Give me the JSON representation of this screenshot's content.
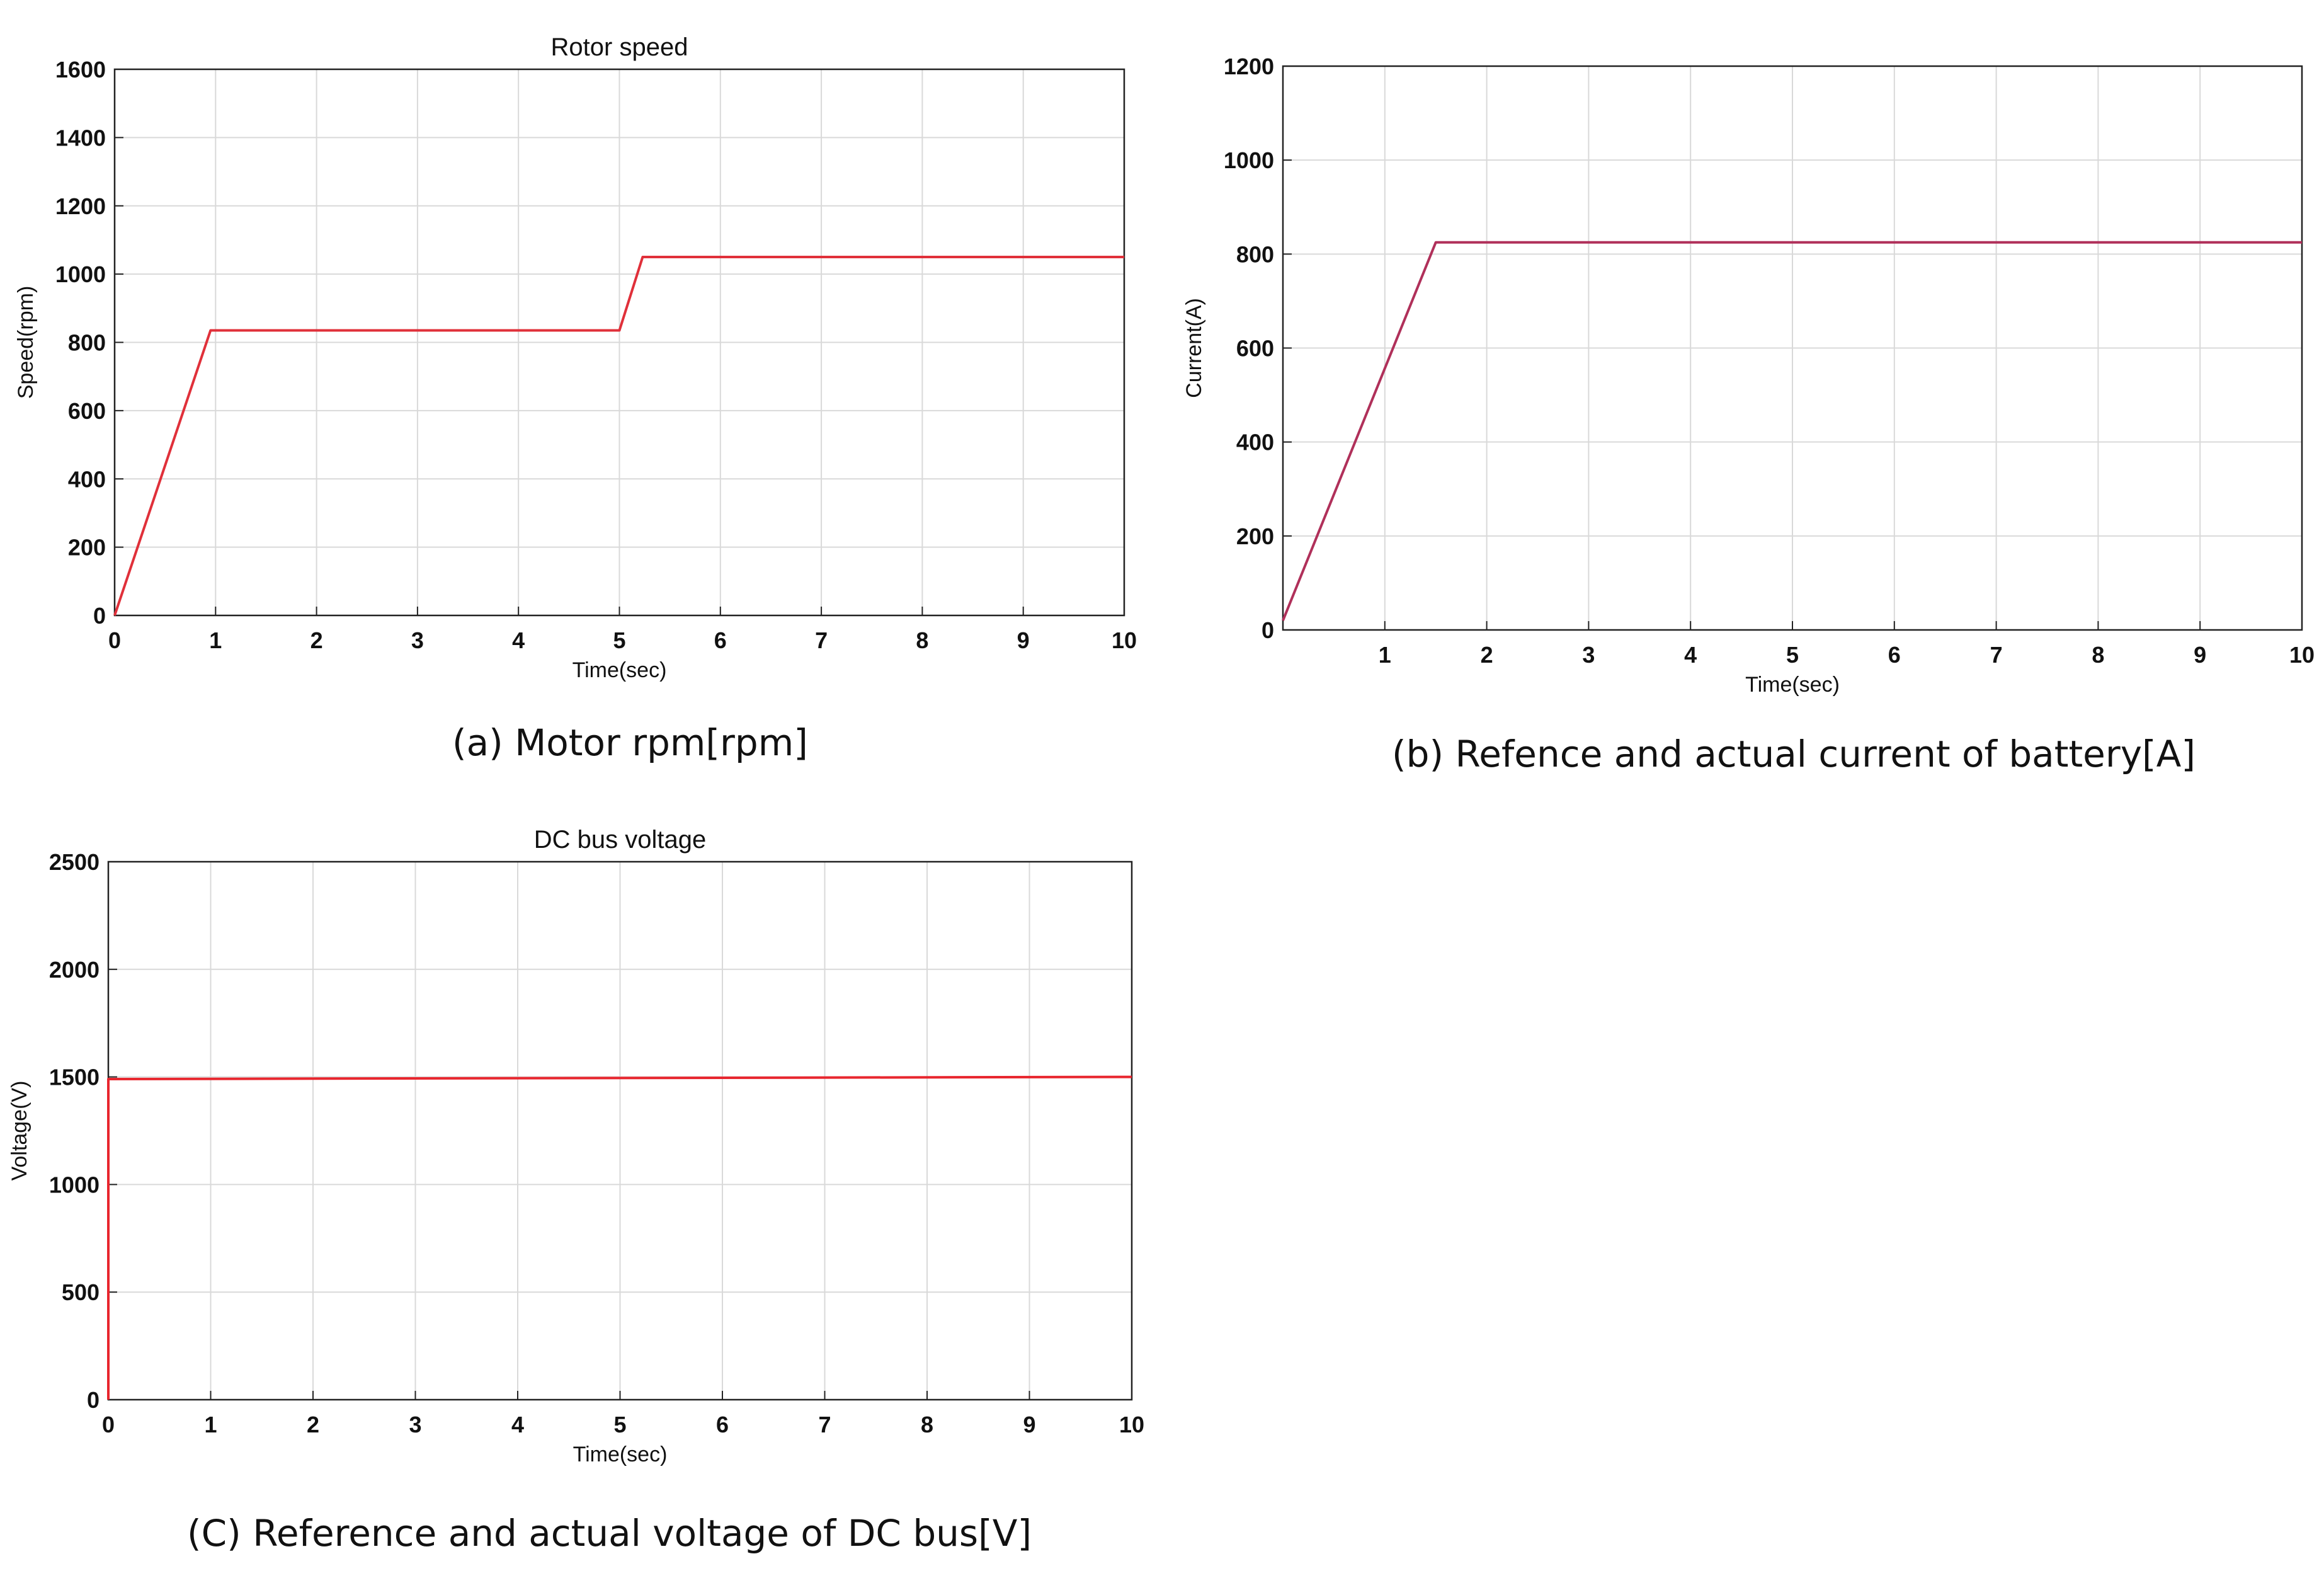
{
  "chart_data": [
    {
      "id": "a",
      "type": "line",
      "title": "Rotor speed",
      "xlabel": "Time(sec)",
      "ylabel": "Speed(rpm)",
      "xlim": [
        0,
        10
      ],
      "ylim": [
        0,
        1600
      ],
      "xticks": [
        0,
        1,
        2,
        3,
        4,
        5,
        6,
        7,
        8,
        9,
        10
      ],
      "xtick_labels": [
        "0",
        "1",
        "2",
        "3",
        "4",
        "5",
        "6",
        "7",
        "8",
        "9",
        "10"
      ],
      "yticks": [
        0,
        200,
        400,
        600,
        800,
        1000,
        1200,
        1400,
        1600
      ],
      "ytick_labels": [
        "0",
        "200",
        "400",
        "600",
        "800",
        "1000",
        "1200",
        "1400",
        "1600"
      ],
      "grid": true,
      "series": [
        {
          "color": "#e0303a",
          "x": [
            0,
            0.95,
            5.0,
            5.23,
            10
          ],
          "y": [
            0,
            835,
            835,
            1050,
            1050
          ]
        }
      ],
      "caption": "(a) Motor rpm[rpm]"
    },
    {
      "id": "b",
      "type": "line",
      "title": "",
      "xlabel": "Time(sec)",
      "ylabel": "Current(A)",
      "xlim": [
        0,
        10
      ],
      "ylim": [
        0,
        1200
      ],
      "xticks": [
        1,
        2,
        3,
        4,
        5,
        6,
        7,
        8,
        9,
        10
      ],
      "xtick_labels": [
        "1",
        "2",
        "3",
        "4",
        "5",
        "6",
        "7",
        "8",
        "9",
        "10"
      ],
      "yticks": [
        0,
        200,
        400,
        600,
        800,
        1000,
        1200
      ],
      "ytick_labels": [
        "0",
        "200",
        "400",
        "600",
        "800",
        "1000",
        "1200"
      ],
      "grid": true,
      "series": [
        {
          "color": "#b0305a",
          "x": [
            0,
            1.5,
            10
          ],
          "y": [
            20,
            825,
            825
          ]
        }
      ],
      "caption": "(b) Refence and actual current of battery[A]"
    },
    {
      "id": "c",
      "type": "line",
      "title": "DC bus voltage",
      "xlabel": "Time(sec)",
      "ylabel": "Voltage(V)",
      "xlim": [
        0,
        10
      ],
      "ylim": [
        0,
        2500
      ],
      "xticks": [
        0,
        1,
        2,
        3,
        4,
        5,
        6,
        7,
        8,
        9,
        10
      ],
      "xtick_labels": [
        "0",
        "1",
        "2",
        "3",
        "4",
        "5",
        "6",
        "7",
        "8",
        "9",
        "10"
      ],
      "yticks": [
        0,
        500,
        1000,
        1500,
        2000,
        2500
      ],
      "ytick_labels": [
        "0",
        "500",
        "1000",
        "1500",
        "2000",
        "2500"
      ],
      "grid": true,
      "series": [
        {
          "color": "#e8262e",
          "x": [
            0,
            0,
            0.02,
            10
          ],
          "y": [
            0,
            1490,
            1490,
            1500
          ]
        }
      ],
      "caption": "(C) Reference and actual voltage of DC bus[V]"
    }
  ]
}
